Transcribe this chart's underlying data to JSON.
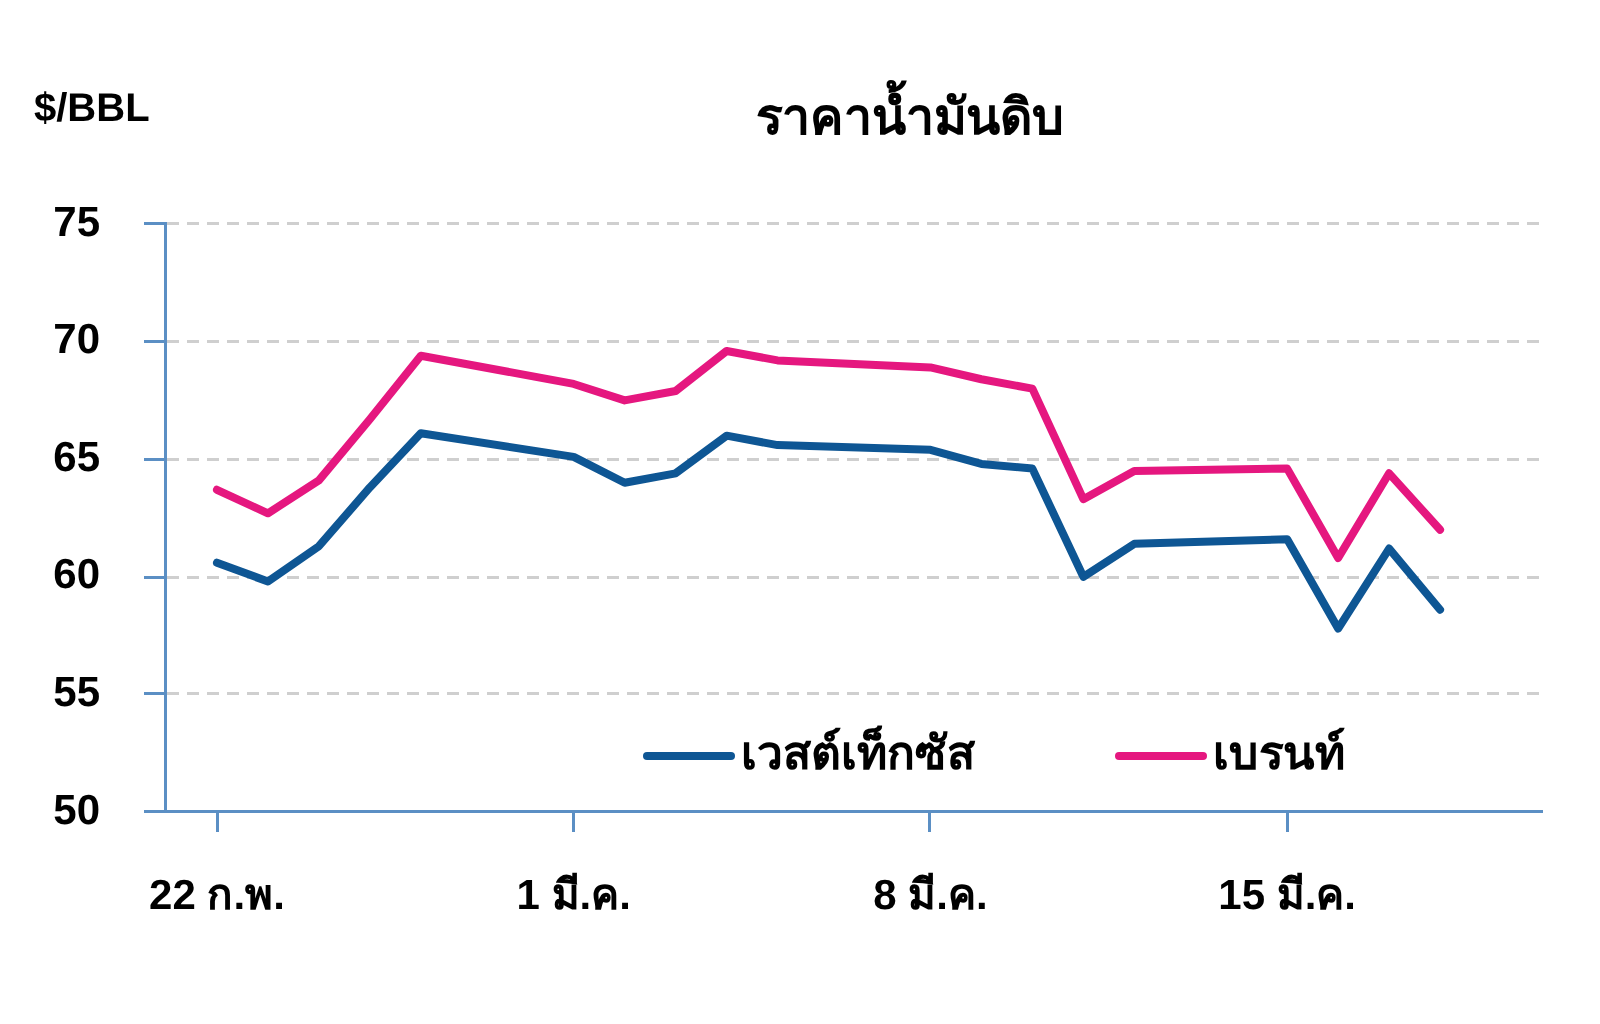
{
  "chart_data": {
    "type": "line",
    "title": "ราคาน้ำมันดิบ",
    "ylabel": "$/BBL",
    "x": [
      "--02-22",
      "--02-23",
      "--02-24",
      "--02-25",
      "--02-26",
      "--03-01",
      "--03-02",
      "--03-03",
      "--03-04",
      "--03-05",
      "--03-08",
      "--03-09",
      "--03-10",
      "--03-11",
      "--03-12",
      "--03-15",
      "--03-16",
      "--03-17",
      "--03-18"
    ],
    "series": [
      {
        "name": "เวสต์เท็กซัส",
        "color": "#0e5694",
        "values": [
          60.6,
          59.8,
          61.3,
          63.8,
          66.1,
          65.1,
          64.0,
          64.4,
          66.0,
          65.6,
          65.4,
          64.8,
          64.6,
          60.0,
          61.4,
          61.6,
          57.8,
          61.2,
          58.6
        ]
      },
      {
        "name": "เบรนท์",
        "color": "#e5177f",
        "values": [
          63.7,
          62.7,
          64.1,
          66.7,
          69.4,
          68.2,
          67.5,
          67.9,
          69.6,
          69.2,
          68.9,
          68.4,
          68.0,
          63.3,
          64.5,
          64.6,
          60.8,
          64.4,
          62.0
        ]
      }
    ],
    "xlim": [
      "--02-21",
      "--03-20"
    ],
    "xticks": [
      {
        "value": "--02-22",
        "label": "22 ก.พ."
      },
      {
        "value": "--03-01",
        "label": "1 มี.ค."
      },
      {
        "value": "--03-08",
        "label": "8 มี.ค."
      },
      {
        "value": "--03-15",
        "label": "15 มี.ค."
      }
    ],
    "ylim": [
      50,
      75
    ],
    "yticks": [
      50,
      55,
      60,
      65,
      70,
      75
    ],
    "grid": "y",
    "legend": "bottom",
    "marker": "none"
  }
}
